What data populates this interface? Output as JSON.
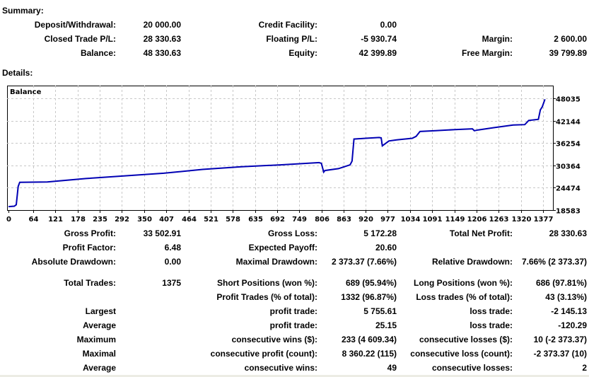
{
  "summary": {
    "title": "Summary:",
    "rows": [
      [
        "Deposit/Withdrawal:",
        "20 000.00",
        "Credit Facility:",
        "0.00",
        "",
        ""
      ],
      [
        "Closed Trade P/L:",
        "28 330.63",
        "Floating P/L:",
        "-5 930.74",
        "Margin:",
        "2 600.00"
      ],
      [
        "Balance:",
        "48 330.63",
        "Equity:",
        "42 399.89",
        "Free Margin:",
        "39 799.89"
      ]
    ]
  },
  "details": {
    "title": "Details:",
    "rows": [
      [
        "Gross Profit:",
        "33 502.91",
        "Gross Loss:",
        "5 172.28",
        "Total Net Profit:",
        "28 330.63"
      ],
      [
        "Profit Factor:",
        "6.48",
        "Expected Payoff:",
        "20.60",
        "",
        ""
      ],
      [
        "Absolute Drawdown:",
        "0.00",
        "Maximal Drawdown:",
        "2 373.37 (7.66%)",
        "Relative Drawdown:",
        "7.66% (2 373.37)"
      ],
      [
        "Total Trades:",
        "1375",
        "Short Positions (won %):",
        "689 (95.94%)",
        "Long Positions (won %):",
        "686 (97.81%)"
      ],
      [
        "",
        "",
        "Profit Trades (% of total):",
        "1332 (96.87%)",
        "Loss trades (% of total):",
        "43 (3.13%)"
      ],
      [
        "Largest",
        "",
        "profit trade:",
        "5 755.61",
        "loss trade:",
        "-2 145.13"
      ],
      [
        "Average",
        "",
        "profit trade:",
        "25.15",
        "loss trade:",
        "-120.29"
      ],
      [
        "Maximum",
        "",
        "consecutive wins ($):",
        "233 (4 609.34)",
        "consecutive losses ($):",
        "10 (-2 373.37)"
      ],
      [
        "Maximal",
        "",
        "consecutive profit (count):",
        "8 360.22 (115)",
        "consecutive loss (count):",
        "-2 373.37 (10)"
      ],
      [
        "Average",
        "",
        "consecutive wins:",
        "49",
        "consecutive losses:",
        "2"
      ]
    ]
  },
  "chart_data": {
    "type": "line",
    "title": "Balance",
    "x_ticks": [
      0,
      64,
      121,
      178,
      235,
      292,
      350,
      407,
      464,
      521,
      578,
      635,
      692,
      749,
      806,
      863,
      920,
      977,
      1034,
      1091,
      1149,
      1206,
      1263,
      1320,
      1377
    ],
    "y_ticks": [
      18583,
      24474,
      30364,
      36254,
      42144,
      48035
    ],
    "ylim": [
      18583,
      48035
    ],
    "xlim": [
      0,
      1395
    ],
    "grid": true,
    "line_color": "#0000b4",
    "series": [
      {
        "x": [
          0,
          15,
          20,
          25,
          29,
          100,
          200,
          300,
          400,
          500,
          600,
          700,
          800,
          806,
          812,
          815,
          850,
          880,
          885,
          890,
          920,
          955,
          960,
          963,
          980,
          1000,
          1040,
          1050,
          1060,
          1100,
          1150,
          1195,
          1200,
          1210,
          1250,
          1300,
          1330,
          1340,
          1365,
          1370,
          1375,
          1382
        ],
        "y": [
          19500,
          19600,
          20000,
          24800,
          25900,
          26000,
          26900,
          27600,
          28300,
          29300,
          30000,
          30500,
          31100,
          30900,
          28600,
          29000,
          29500,
          30500,
          31500,
          37300,
          37500,
          37700,
          37600,
          35500,
          36800,
          37100,
          37500,
          38000,
          39300,
          39500,
          39800,
          40000,
          39500,
          39700,
          40300,
          41000,
          41100,
          42200,
          42500,
          45000,
          45800,
          47800
        ]
      }
    ]
  }
}
